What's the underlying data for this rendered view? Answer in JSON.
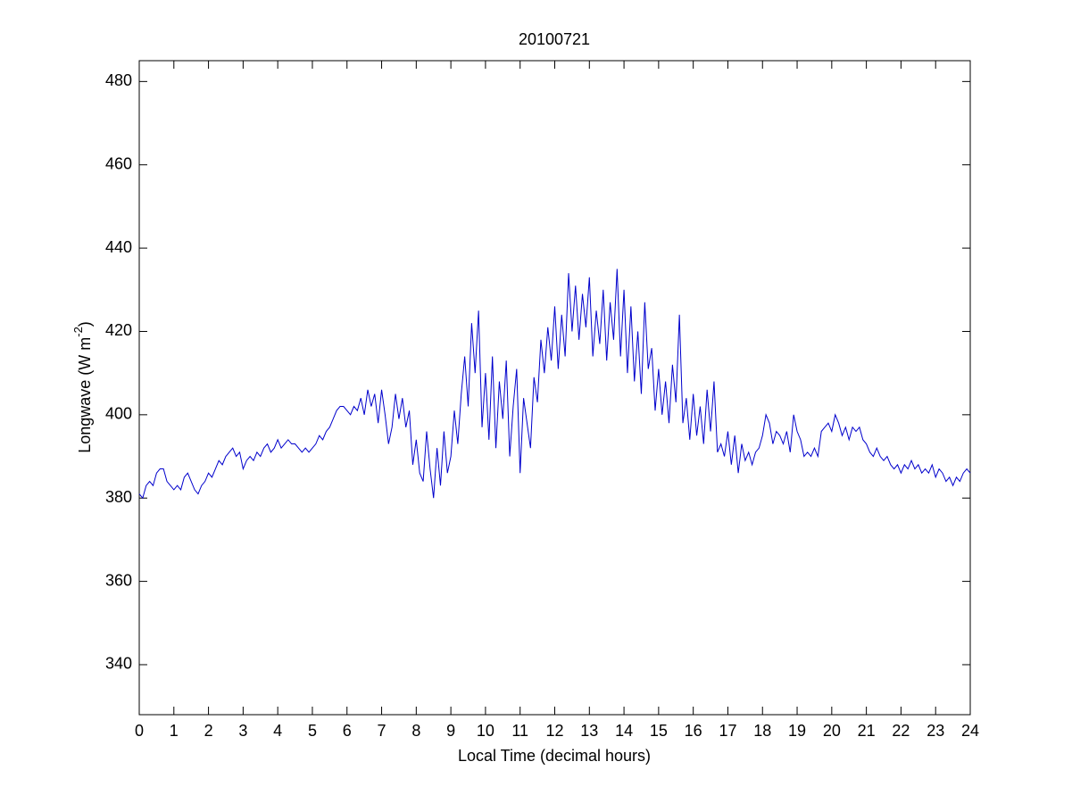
{
  "chart_data": {
    "type": "line",
    "title": "20100721",
    "xlabel": "Local Time (decimal hours)",
    "ylabel": "Longwave (W m",
    "ylabel_sup": "-2",
    "ylabel_end": ")",
    "xlim": [
      0,
      24
    ],
    "xticks": [
      0,
      1,
      2,
      3,
      4,
      5,
      6,
      7,
      8,
      9,
      10,
      11,
      12,
      13,
      14,
      15,
      16,
      17,
      18,
      19,
      20,
      21,
      22,
      23,
      24
    ],
    "ylim": [
      328,
      485
    ],
    "yticks": [
      340,
      360,
      380,
      400,
      420,
      440,
      460,
      480
    ],
    "grid": false,
    "x": [
      0,
      0.1,
      0.2,
      0.3,
      0.4,
      0.5,
      0.6,
      0.7,
      0.8,
      0.9,
      1,
      1.1,
      1.2,
      1.3,
      1.4,
      1.5,
      1.6,
      1.7,
      1.8,
      1.9,
      2,
      2.1,
      2.2,
      2.3,
      2.4,
      2.5,
      2.6,
      2.7,
      2.8,
      2.9,
      3,
      3.1,
      3.2,
      3.3,
      3.4,
      3.5,
      3.6,
      3.7,
      3.8,
      3.9,
      4,
      4.1,
      4.2,
      4.3,
      4.4,
      4.5,
      4.6,
      4.7,
      4.8,
      4.9,
      5,
      5.1,
      5.2,
      5.3,
      5.4,
      5.5,
      5.6,
      5.7,
      5.8,
      5.9,
      6,
      6.1,
      6.2,
      6.3,
      6.4,
      6.5,
      6.6,
      6.7,
      6.8,
      6.9,
      7,
      7.1,
      7.2,
      7.3,
      7.4,
      7.5,
      7.6,
      7.7,
      7.8,
      7.9,
      8,
      8.1,
      8.2,
      8.3,
      8.4,
      8.5,
      8.6,
      8.7,
      8.8,
      8.9,
      9,
      9.1,
      9.2,
      9.3,
      9.4,
      9.5,
      9.6,
      9.7,
      9.8,
      9.9,
      10,
      10.1,
      10.2,
      10.3,
      10.4,
      10.5,
      10.6,
      10.7,
      10.8,
      10.9,
      11,
      11.1,
      11.2,
      11.3,
      11.4,
      11.5,
      11.6,
      11.7,
      11.8,
      11.9,
      12,
      12.1,
      12.2,
      12.3,
      12.4,
      12.5,
      12.6,
      12.7,
      12.8,
      12.9,
      13,
      13.1,
      13.2,
      13.3,
      13.4,
      13.5,
      13.6,
      13.7,
      13.8,
      13.9,
      14,
      14.1,
      14.2,
      14.3,
      14.4,
      14.5,
      14.6,
      14.7,
      14.8,
      14.9,
      15,
      15.1,
      15.2,
      15.3,
      15.4,
      15.5,
      15.6,
      15.7,
      15.8,
      15.9,
      16,
      16.1,
      16.2,
      16.3,
      16.4,
      16.5,
      16.6,
      16.7,
      16.8,
      16.9,
      17,
      17.1,
      17.2,
      17.3,
      17.4,
      17.5,
      17.6,
      17.7,
      17.8,
      17.9,
      18,
      18.1,
      18.2,
      18.3,
      18.4,
      18.5,
      18.6,
      18.7,
      18.8,
      18.9,
      19,
      19.1,
      19.2,
      19.3,
      19.4,
      19.5,
      19.6,
      19.7,
      19.8,
      19.9,
      20,
      20.1,
      20.2,
      20.3,
      20.4,
      20.5,
      20.6,
      20.7,
      20.8,
      20.9,
      21,
      21.1,
      21.2,
      21.3,
      21.4,
      21.5,
      21.6,
      21.7,
      21.8,
      21.9,
      22,
      22.1,
      22.2,
      22.3,
      22.4,
      22.5,
      22.6,
      22.7,
      22.8,
      22.9,
      23,
      23.1,
      23.2,
      23.3,
      23.4,
      23.5,
      23.6,
      23.7,
      23.8,
      23.9,
      24
    ],
    "series": [
      {
        "name": "Longwave",
        "color": "#0000cc",
        "values": [
          381,
          380,
          383,
          384,
          383,
          386,
          387,
          387,
          384,
          383,
          382,
          383,
          382,
          385,
          386,
          384,
          382,
          381,
          383,
          384,
          386,
          385,
          387,
          389,
          388,
          390,
          391,
          392,
          390,
          391,
          387,
          389,
          390,
          389,
          391,
          390,
          392,
          393,
          391,
          392,
          394,
          392,
          393,
          394,
          393,
          393,
          392,
          391,
          392,
          391,
          392,
          393,
          395,
          394,
          396,
          397,
          399,
          401,
          402,
          402,
          401,
          400,
          402,
          401,
          404,
          400,
          406,
          402,
          405,
          398,
          406,
          400,
          393,
          397,
          405,
          399,
          404,
          397,
          401,
          388,
          394,
          386,
          384,
          396,
          387,
          380,
          392,
          383,
          396,
          386,
          390,
          401,
          393,
          405,
          414,
          402,
          422,
          410,
          425,
          397,
          410,
          394,
          414,
          392,
          408,
          399,
          413,
          390,
          402,
          411,
          386,
          404,
          398,
          392,
          409,
          403,
          418,
          410,
          421,
          413,
          426,
          411,
          424,
          414,
          434,
          420,
          431,
          418,
          429,
          421,
          433,
          414,
          425,
          417,
          430,
          413,
          427,
          418,
          435,
          414,
          430,
          410,
          426,
          408,
          420,
          405,
          427,
          411,
          416,
          401,
          411,
          400,
          408,
          398,
          412,
          403,
          424,
          398,
          404,
          394,
          405,
          395,
          402,
          393,
          406,
          396,
          408,
          391,
          393,
          390,
          396,
          388,
          395,
          386,
          393,
          389,
          391,
          388,
          391,
          392,
          395,
          400,
          398,
          393,
          396,
          395,
          393,
          396,
          391,
          400,
          396,
          394,
          390,
          391,
          390,
          392,
          390,
          396,
          397,
          398,
          396,
          400,
          398,
          395,
          397,
          394,
          397,
          396,
          397,
          394,
          393,
          391,
          390,
          392,
          390,
          389,
          390,
          388,
          387,
          388,
          386,
          388,
          387,
          389,
          387,
          388,
          386,
          387,
          386,
          388,
          385,
          387,
          386,
          384,
          385,
          383,
          385,
          384,
          386,
          387,
          386
        ]
      }
    ]
  }
}
